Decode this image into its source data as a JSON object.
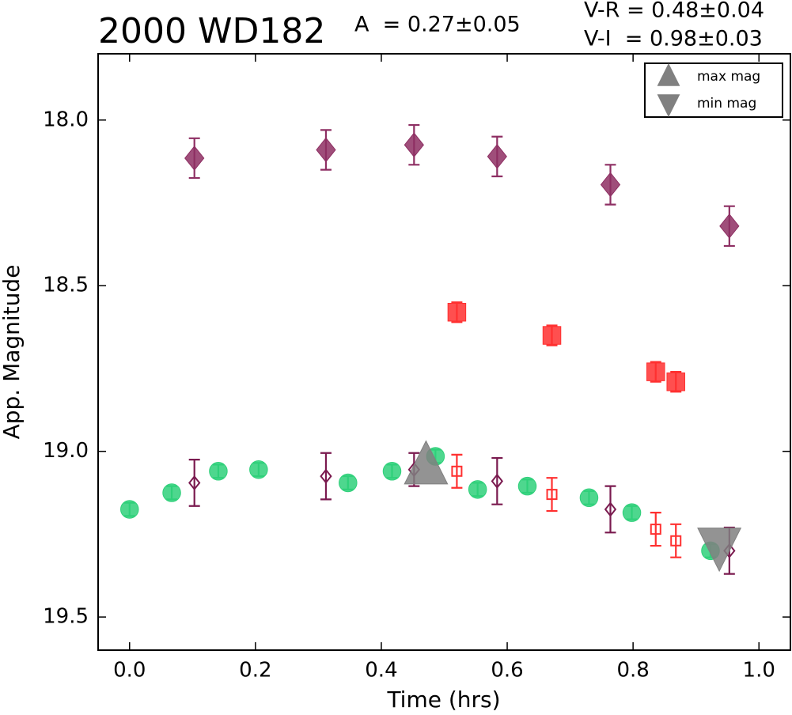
{
  "chart_data": {
    "type": "scatter",
    "title": "2000 WD182",
    "annotations": [
      "A  = 0.27±0.05",
      "V-R = 0.48±0.04",
      "V-I  = 0.98±0.03"
    ],
    "x_label": "Time (hrs)",
    "y_label": "App. Magnitude",
    "xlim": [
      -0.05,
      1.05
    ],
    "ylim": [
      17.8,
      19.6
    ],
    "invert_y": true,
    "xticks": [
      {
        "value": 0,
        "label": "0.0"
      },
      0.2,
      0.4,
      0.6,
      0.8,
      {
        "value": 1,
        "label": "1.0"
      }
    ],
    "yticks": [
      {
        "value": 18,
        "label": "18.0"
      },
      18.5,
      {
        "value": 19,
        "label": "19.0"
      },
      19.5
    ],
    "legend": "upper right",
    "series": [
      {
        "color": "#8e2f63",
        "marker": "diamond",
        "filled": true,
        "x": [
          0.103,
          0.312,
          0.452,
          0.584,
          0.764,
          0.953
        ],
        "values": [
          18.115,
          18.09,
          18.075,
          18.11,
          18.195,
          18.32
        ],
        "errors": [
          0.06,
          0.06,
          0.06,
          0.06,
          0.06,
          0.06
        ]
      },
      {
        "color": "#ff3030",
        "marker": "square",
        "filled": true,
        "x": [
          0.52,
          0.671,
          0.836,
          0.868
        ],
        "values": [
          18.58,
          18.65,
          18.76,
          18.79
        ],
        "errors": [
          0.03,
          0.03,
          0.03,
          0.03
        ]
      },
      {
        "color": "#2fd07a",
        "marker": "circle",
        "filled": true,
        "x": [
          0.0,
          0.067,
          0.141,
          0.205,
          0.347,
          0.417,
          0.486,
          0.553,
          0.632,
          0.73,
          0.798,
          0.923
        ],
        "values": [
          19.175,
          19.125,
          19.06,
          19.055,
          19.095,
          19.06,
          19.015,
          19.115,
          19.105,
          19.14,
          19.185,
          19.3
        ],
        "errors": [
          0.02,
          0.02,
          0.02,
          0.02,
          0.02,
          0.02,
          0.02,
          0.02,
          0.02,
          0.02,
          0.02,
          0.02
        ]
      },
      {
        "color": "#7a1a4f",
        "marker": "diamond",
        "filled": false,
        "x": [
          0.103,
          0.312,
          0.452,
          0.584,
          0.764,
          0.953
        ],
        "values": [
          19.095,
          19.075,
          19.055,
          19.09,
          19.175,
          19.3
        ],
        "errors": [
          0.07,
          0.07,
          0.05,
          0.07,
          0.07,
          0.07
        ]
      },
      {
        "color": "#ff3030",
        "marker": "square",
        "filled": false,
        "x": [
          0.52,
          0.671,
          0.836,
          0.868
        ],
        "values": [
          19.06,
          19.13,
          19.235,
          19.27
        ],
        "errors": [
          0.05,
          0.05,
          0.05,
          0.05
        ]
      },
      {
        "name": "max mag",
        "color": "#808080",
        "marker": "triangle-up",
        "filled": true,
        "x": [
          0.471
        ],
        "values": [
          19.045
        ]
      },
      {
        "name": "min mag",
        "color": "#808080",
        "marker": "triangle-down",
        "filled": true,
        "x": [
          0.937
        ],
        "values": [
          19.285
        ]
      }
    ]
  }
}
